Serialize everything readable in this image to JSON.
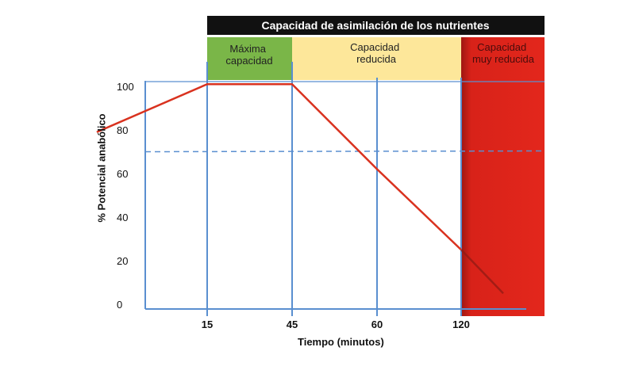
{
  "chart_data": {
    "type": "line",
    "title": "Capacidad de asimilación de los nutrientes",
    "xlabel": "Tiempo (minutos)",
    "ylabel": "% Potencial anabólico",
    "x_ticks": [
      "15",
      "45",
      "60",
      "120"
    ],
    "y_ticks": [
      "0",
      "20",
      "40",
      "60",
      "80",
      "100"
    ],
    "ylim": [
      0,
      100
    ],
    "zones": [
      {
        "label_lines": [
          "Máxima",
          "capacidad"
        ],
        "color": "#7ab648",
        "text_color": "#222222"
      },
      {
        "label_lines": [
          "Capacidad",
          "reducida"
        ],
        "color": "#fde79a",
        "text_color": "#222222"
      },
      {
        "label_lines": [
          "Capacidad",
          "muy reducida"
        ],
        "color": "#e3271c",
        "text_color": "#4a0c0c"
      }
    ],
    "series": [
      {
        "tick_position": [
          -1.3,
          0,
          1,
          2,
          3,
          3.5
        ],
        "values": [
          79,
          101,
          101,
          62,
          25,
          5
        ]
      }
    ],
    "reference_line": {
      "value": 70,
      "style": "dashed"
    },
    "colors": {
      "line": "#d9321f",
      "axis": "#5a8fd0",
      "title_bg": "#111111"
    }
  }
}
